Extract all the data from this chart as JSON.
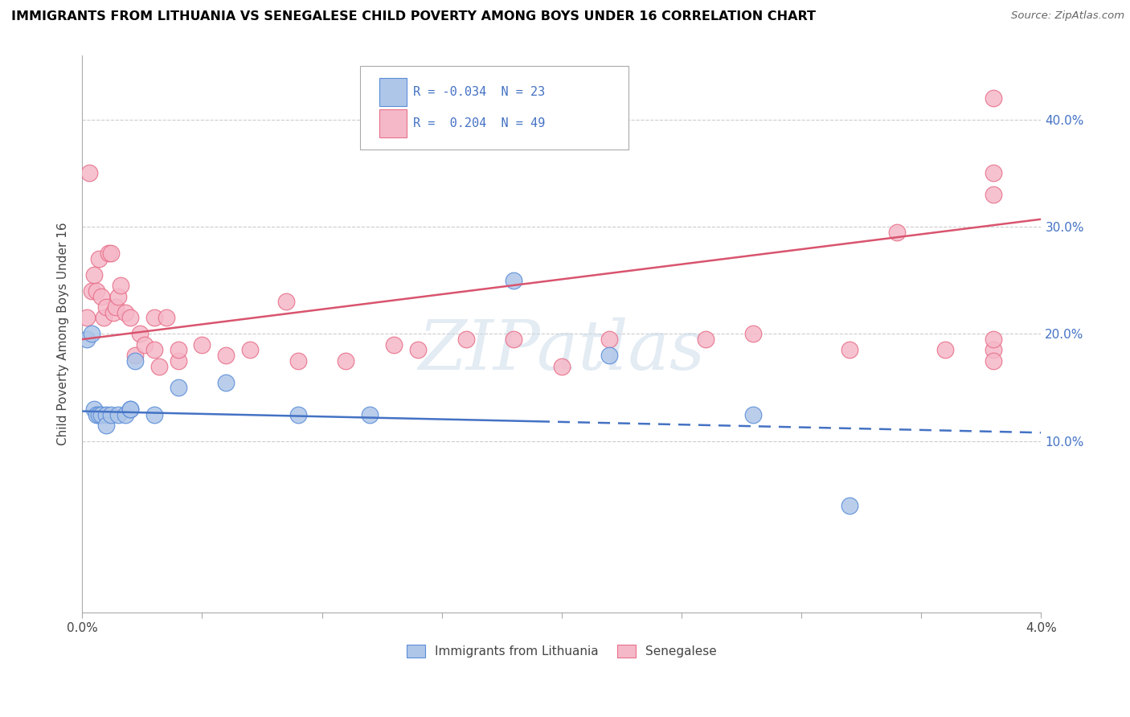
{
  "title": "IMMIGRANTS FROM LITHUANIA VS SENEGALESE CHILD POVERTY AMONG BOYS UNDER 16 CORRELATION CHART",
  "source": "Source: ZipAtlas.com",
  "ylabel": "Child Poverty Among Boys Under 16",
  "ytick_labels": [
    "10.0%",
    "20.0%",
    "30.0%",
    "40.0%"
  ],
  "ytick_values": [
    0.1,
    0.2,
    0.3,
    0.4
  ],
  "xlim": [
    0.0,
    0.04
  ],
  "ylim": [
    -0.06,
    0.46
  ],
  "legend_blue_label": "Immigrants from Lithuania",
  "legend_pink_label": "Senegalese",
  "R_blue": -0.034,
  "N_blue": 23,
  "R_pink": 0.204,
  "N_pink": 49,
  "blue_color": "#aec6e8",
  "pink_color": "#f5b8c8",
  "blue_edge_color": "#5b8dd9",
  "pink_edge_color": "#e8708a",
  "blue_line_color": "#4472c4",
  "pink_line_color": "#d9546e",
  "watermark_text": "ZIPatlas",
  "blue_trend_intercept": 0.128,
  "blue_trend_slope": -0.5,
  "pink_trend_intercept": 0.195,
  "pink_trend_slope": 2.8,
  "blue_x": [
    0.0002,
    0.0004,
    0.0005,
    0.0006,
    0.0007,
    0.0008,
    0.001,
    0.001,
    0.0012,
    0.0015,
    0.0018,
    0.002,
    0.002,
    0.0022,
    0.003,
    0.004,
    0.006,
    0.009,
    0.012,
    0.018,
    0.022,
    0.028,
    0.032
  ],
  "blue_y": [
    0.195,
    0.2,
    0.13,
    0.125,
    0.125,
    0.125,
    0.125,
    0.115,
    0.125,
    0.125,
    0.125,
    0.13,
    0.13,
    0.175,
    0.125,
    0.15,
    0.155,
    0.125,
    0.125,
    0.25,
    0.18,
    0.125,
    0.04
  ],
  "pink_x": [
    0.0002,
    0.0003,
    0.0004,
    0.0005,
    0.0006,
    0.0007,
    0.0008,
    0.0009,
    0.001,
    0.0011,
    0.0012,
    0.0013,
    0.0014,
    0.0015,
    0.0016,
    0.0018,
    0.002,
    0.0022,
    0.0024,
    0.0026,
    0.003,
    0.003,
    0.0032,
    0.0035,
    0.004,
    0.004,
    0.005,
    0.006,
    0.007,
    0.0085,
    0.009,
    0.011,
    0.013,
    0.014,
    0.016,
    0.018,
    0.02,
    0.022,
    0.026,
    0.028,
    0.032,
    0.034,
    0.036,
    0.038,
    0.038,
    0.038,
    0.038,
    0.038,
    0.038
  ],
  "pink_y": [
    0.215,
    0.35,
    0.24,
    0.255,
    0.24,
    0.27,
    0.235,
    0.215,
    0.225,
    0.275,
    0.275,
    0.22,
    0.225,
    0.235,
    0.245,
    0.22,
    0.215,
    0.18,
    0.2,
    0.19,
    0.185,
    0.215,
    0.17,
    0.215,
    0.175,
    0.185,
    0.19,
    0.18,
    0.185,
    0.23,
    0.175,
    0.175,
    0.19,
    0.185,
    0.195,
    0.195,
    0.17,
    0.195,
    0.195,
    0.2,
    0.185,
    0.295,
    0.185,
    0.185,
    0.42,
    0.175,
    0.195,
    0.33,
    0.35
  ]
}
